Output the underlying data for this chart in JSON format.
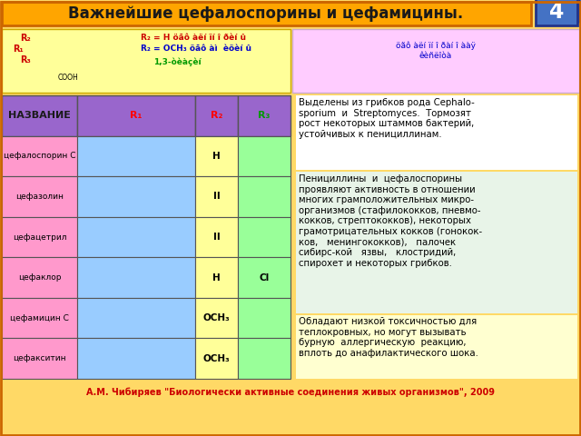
{
  "title": "Важнейшие цефалоспорины и цефамицины.",
  "number": "4",
  "background_color": "#FFD966",
  "title_bg": "#FFA500",
  "title_color": "#1a1a1a",
  "title_border": "#CC6600",
  "number_bg": "#4472C4",
  "number_color": "white",
  "footer": "А.М. Чибиряев \"Биологически активные соединения живых организмов\", 2009",
  "footer_color": "#CC0000",
  "table_header_bg": "#9966CC",
  "table_col1_bg": "#FF99CC",
  "table_col2_bg": "#99CCFF",
  "table_col3_bg": "#FFFF99",
  "table_col4_bg": "#99FF99",
  "col_headers": [
    "НАЗВАНИЕ",
    "R₁",
    "R₂",
    "R₃"
  ],
  "col_header_colors": [
    "#1a1a1a",
    "#FF0000",
    "#FF0000",
    "#009900"
  ],
  "rows": [
    "цефалоспорин С",
    "цефазолин",
    "цефацетрил",
    "цефаклор",
    "цефамицин С",
    "цефакситин"
  ],
  "r2_values": [
    "H",
    "II",
    "II",
    "H",
    "OCH₃",
    "OCH₃"
  ],
  "r3_values": [
    "",
    "",
    "",
    "Cl",
    "",
    ""
  ],
  "top_left_bg": "#FFFF99",
  "top_right_bg": "#FFCCFF",
  "text_block1": "Выделены из грибков рода Cephalo-\nsporium  и  Streptomyces.  Тормозят\nрост некоторых штаммов бактерий,\nустойчивых к пенициллинам.",
  "text_block2": "Пенициллины  и  цефалоспорины\nпроявляют активность в отношении\nмногих грамположительных микро-\nорганизмов (стафилококков, пневмо-\nкокков, стрептококков), некоторых\nграмотрицательных кокков (гонокок-\nков,   менингококков),   палочек\nсибирс-кой   язвы,   клостридий,\nспирохет и некоторых грибков.",
  "text_block3": "Обладают низкой токсичностью для\nтеплокровных, но могут вызывать\nбурную  аллергическую  реакцию,\nвплоть до анафилактического шока.",
  "top_right_label1": "öãô àëí ïí î ðàí î ààÿ",
  "top_right_label2": "êèñëîòà"
}
